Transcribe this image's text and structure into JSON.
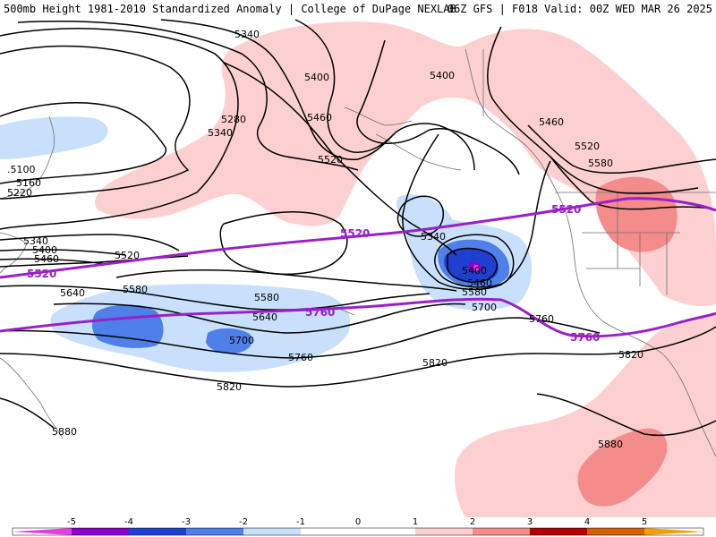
{
  "header": {
    "title": "500mb Height 1981-2010 Standardized Anomaly | College of DuPage NEXLAB",
    "run": "06Z GFS | F018 Valid: 00Z WED MAR 26 2025"
  },
  "colors": {
    "neg5": "#e040e0",
    "neg4": "#8800cc",
    "neg3": "#1f3fcf",
    "neg2": "#4f7fe8",
    "neg1": "#c8e0fb",
    "zero": "#ffffff",
    "pos1": "#fcd0d0",
    "pos2": "#f48c8c",
    "pos3": "#e03030",
    "pos4": "#b00000",
    "pos5": "#f0a000",
    "purple_contour": "#9a20c8"
  },
  "contours": {
    "black": [
      "5100",
      "5160",
      "5220",
      "5280",
      "5340",
      "5400",
      "5460",
      "5520",
      "5580",
      "5640",
      "5700",
      "5760",
      "5820",
      "5880"
    ],
    "purple": [
      "5520",
      "5760"
    ]
  },
  "labels": {
    "l5340a": "5340",
    "l5400a": "5400",
    "l5280": "5280",
    "l5340b": "5340",
    "l5460a": "5460",
    "l5100": ".5100",
    "l5160": "5160",
    "l5220": "5220",
    "l5520a": "5520",
    "l5400b": "5400",
    "l5460b": "5460",
    "l5520b": "5520",
    "l5580b": "5580",
    "l5340c": "5340",
    "l5400c": "5400",
    "l5460c": "5460",
    "l5580c": "5580",
    "l5700c": "5700",
    "l5340w": "5340",
    "l5400w": "5400",
    "l5460w": "5460",
    "l5520w": "5520",
    "l5640w": "5640",
    "l5580w": "5580",
    "l5580m": "5580",
    "l5640m": "5640",
    "l5700m": "5700",
    "l5760m": "5760",
    "l5820m": "5820",
    "l5820c": "5820",
    "l5760e": "5760",
    "l5820e": "5820",
    "l5880w": "5880",
    "l5880e": "5880",
    "p5520w": "5520",
    "p5520m": "5520",
    "p5520e": "5520",
    "p5760m": "5760",
    "p5760e": "5760"
  },
  "colorbar": {
    "ticks": [
      "-5",
      "-4",
      "-3",
      "-2",
      "-1",
      "0",
      "1",
      "2",
      "3",
      "4",
      "5"
    ]
  }
}
